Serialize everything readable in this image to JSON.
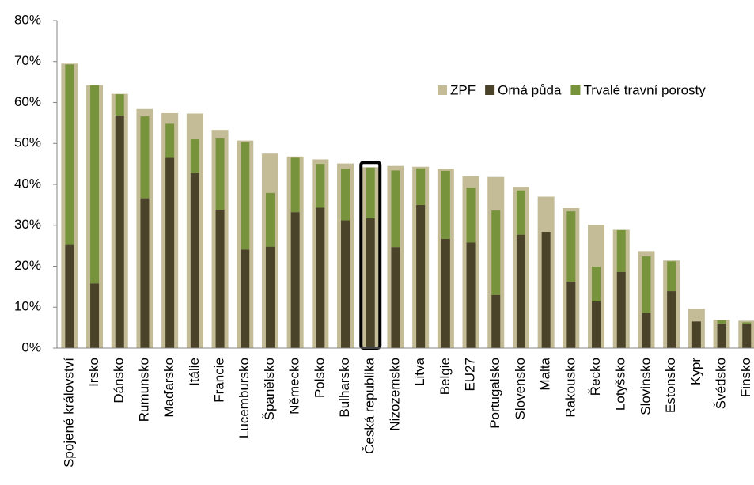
{
  "chart_data": {
    "type": "bar",
    "categories": [
      "Spojené království",
      "Irsko",
      "Dánsko",
      "Rumunsko",
      "Maďarsko",
      "Itálie",
      "Francie",
      "Lucembursko",
      "Španělsko",
      "Německo",
      "Polsko",
      "Bulharsko",
      "Česká republika",
      "Nizozemsko",
      "Litva",
      "Belgie",
      "EU27",
      "Portugalsko",
      "Slovensko",
      "Malta",
      "Rakousko",
      "Řecko",
      "Lotyšsko",
      "Slovinsko",
      "Estonsko",
      "Kypr",
      "Švédsko",
      "Finsko"
    ],
    "series": [
      {
        "name": "ZPF",
        "color": "#c4bc96",
        "stack": false,
        "values": [
          69.5,
          64.2,
          62.1,
          58.4,
          57.4,
          57.3,
          53.3,
          50.7,
          47.5,
          46.8,
          46.1,
          45.1,
          44.2,
          44.5,
          44.3,
          43.8,
          42.0,
          41.8,
          39.4,
          37.0,
          34.2,
          30.1,
          28.9,
          23.7,
          21.4,
          9.6,
          6.9,
          6.7
        ]
      },
      {
        "name": "Orná půda",
        "color": "#4a4229",
        "stack": true,
        "values": [
          25.2,
          15.8,
          56.8,
          36.6,
          46.5,
          42.7,
          33.8,
          24.1,
          24.8,
          33.2,
          34.3,
          31.2,
          31.7,
          24.7,
          35.0,
          26.7,
          25.8,
          13.0,
          27.7,
          28.4,
          16.2,
          11.4,
          18.6,
          8.6,
          13.9,
          6.5,
          6.0,
          5.9
        ]
      },
      {
        "name": "Trvalé travní porosty",
        "color": "#77933c",
        "stack": true,
        "values": [
          44.1,
          48.4,
          5.2,
          20.0,
          8.3,
          8.3,
          17.4,
          26.2,
          13.1,
          13.3,
          10.7,
          12.6,
          12.4,
          18.7,
          8.9,
          16.6,
          13.4,
          20.6,
          10.8,
          0,
          17.2,
          8.5,
          10.2,
          13.8,
          7.3,
          0,
          0.8,
          0.4
        ]
      }
    ],
    "ylim": [
      0,
      80
    ],
    "yticks": [
      {
        "value": 0,
        "label": "0%"
      },
      {
        "value": 10,
        "label": "10%"
      },
      {
        "value": 20,
        "label": "20%"
      },
      {
        "value": 30,
        "label": "30%"
      },
      {
        "value": 40,
        "label": "40%"
      },
      {
        "value": 50,
        "label": "50%"
      },
      {
        "value": 60,
        "label": "60%"
      },
      {
        "value": 70,
        "label": "70%"
      },
      {
        "value": 80,
        "label": "80%"
      }
    ],
    "grid": false,
    "legend": "top-right",
    "highlight": 12
  }
}
